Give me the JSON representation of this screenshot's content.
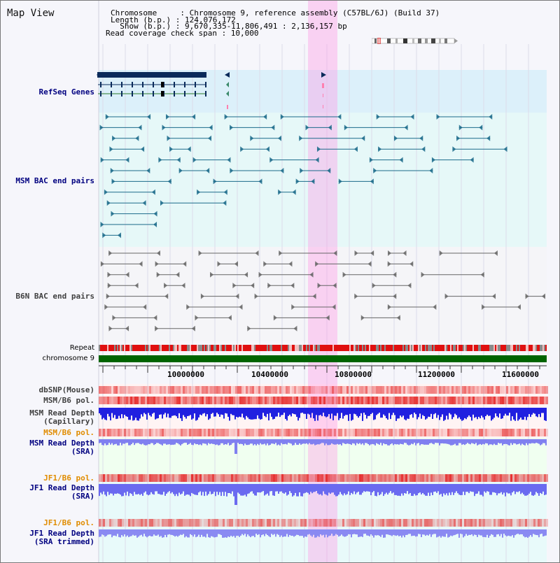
{
  "title": "Map View",
  "header": {
    "chromosome_label": "Chromosome     : Chromosome 9, reference assembly (C57BL/6J) (Build 37)",
    "length_label": "Length (b.p.) : 124,076,172",
    "show_label": "  Show (b.p.) : 9,670,335-11,806,491 : 2,136,157 bp",
    "coverage_label": "Read coverage check span : 10,000"
  },
  "tracks": {
    "refseq": "RefSeq Genes",
    "msm_bac": "MSM BAC end pairs",
    "b6n_bac": "B6N BAC end pairs",
    "repeat": "Repeat",
    "chromosome": "chromosome 9",
    "dbsnp": "dbSNP(Mouse)",
    "msm_b6_pol": "MSM/B6 pol.",
    "msm_read_depth_cap": "MSM Read Depth\n(Capillary)",
    "msm_b6_pol2": "MSM/B6 pol.",
    "msm_read_depth_sra": "MSM Read Depth\n(SRA)",
    "jf1_b6_pol": "JF1/B6 pol.",
    "jf1_read_depth_sra": "JF1 Read Depth\n(SRA)",
    "jf1_b6_pol2": "JF1/B6 pol.",
    "jf1_read_depth_trim": "JF1 Read Depth\n(SRA trimmed)"
  },
  "axis": {
    "ticks": [
      "10000000",
      "10400000",
      "10800000",
      "11200000",
      "11600000"
    ]
  },
  "colors": {
    "label_blue": "#000080",
    "label_orange": "#e08c00",
    "label_gray": "#404040",
    "highlight": "#ff96e6",
    "chromosome_green": "#006400",
    "repeat_red": "#e01010",
    "depth_blue": "#2020e0"
  }
}
